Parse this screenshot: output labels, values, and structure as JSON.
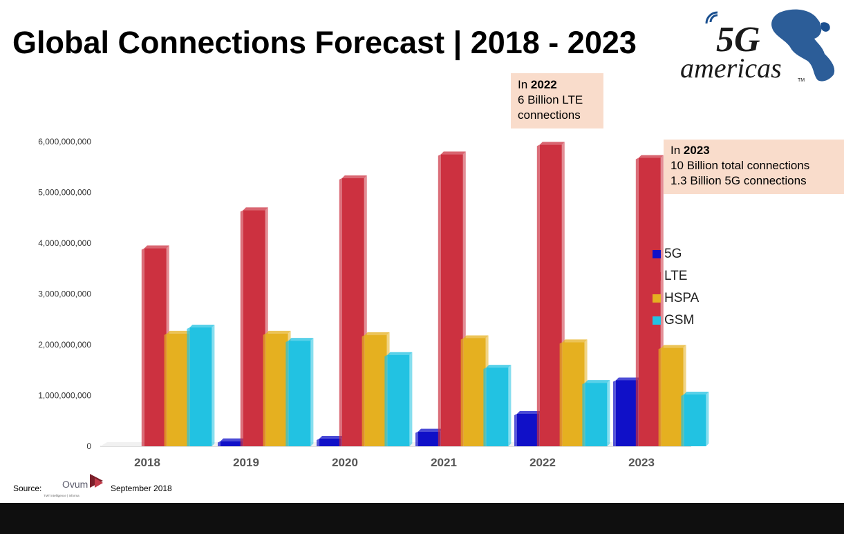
{
  "title": "Global Connections Forecast | 2018 - 2023",
  "logo": {
    "main": "5G",
    "sub": "americas",
    "tm": "TM"
  },
  "callout_2022": {
    "prefix": "In ",
    "year": "2022",
    "line2": "6 Billion LTE",
    "line3": "connections"
  },
  "callout_2023": {
    "prefix": "In ",
    "year": "2023",
    "line2": "10 Billion total connections",
    "line3": "1.3 Billion 5G connections"
  },
  "source": {
    "label": "Source:",
    "org": "Ovum",
    "org_sub": "TMT intelligence | informa",
    "date": "September 2018"
  },
  "colors": {
    "5G": "#1010c8",
    "LTE": "#cc3140",
    "HSPA": "#e5b020",
    "GSM": "#22c2e2"
  },
  "chart_data": {
    "type": "bar",
    "title": "",
    "xlabel": "",
    "ylabel": "",
    "categories": [
      "2018",
      "2019",
      "2020",
      "2021",
      "2022",
      "2023"
    ],
    "series": [
      {
        "name": "5G",
        "values": [
          0,
          100000000,
          150000000,
          290000000,
          640000000,
          1300000000
        ]
      },
      {
        "name": "LTE",
        "values": [
          3900000000,
          4650000000,
          5280000000,
          5750000000,
          5940000000,
          5680000000
        ]
      },
      {
        "name": "HSPA",
        "values": [
          2220000000,
          2220000000,
          2190000000,
          2130000000,
          2050000000,
          1940000000
        ]
      },
      {
        "name": "GSM",
        "values": [
          2340000000,
          2080000000,
          1800000000,
          1550000000,
          1250000000,
          1020000000
        ]
      }
    ],
    "yticks": [
      "0",
      "1,000,000,000",
      "2,000,000,000",
      "3,000,000,000",
      "4,000,000,000",
      "5,000,000,000",
      "6,000,000,000"
    ],
    "ylim": [
      0,
      6000000000
    ],
    "legend": "right"
  }
}
